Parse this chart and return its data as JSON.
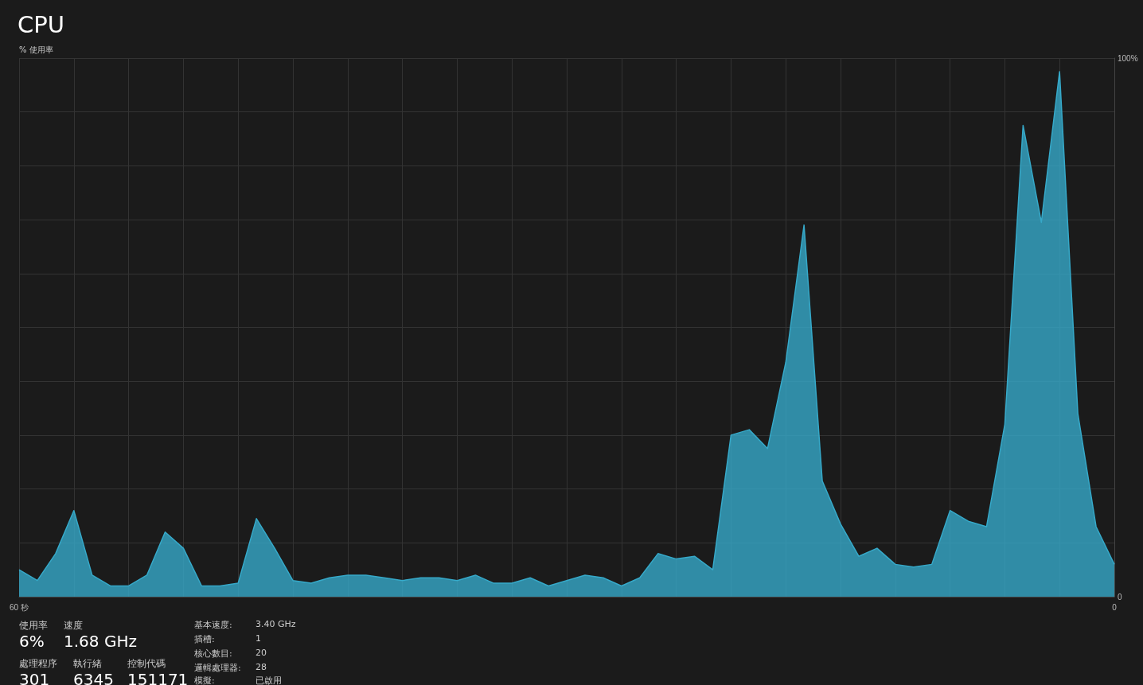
{
  "chart_data": {
    "type": "area",
    "title": "CPU",
    "ylabel": "% 使用率",
    "x": [
      60,
      59,
      58,
      57,
      56,
      55,
      54,
      53,
      52,
      51,
      50,
      49,
      48,
      47,
      46,
      45,
      44,
      43,
      42,
      41,
      40,
      39,
      38,
      37,
      36,
      35,
      34,
      33,
      32,
      31,
      30,
      29,
      28,
      27,
      26,
      25,
      24,
      23,
      22,
      21,
      20,
      19,
      18,
      17,
      16,
      15,
      14,
      13,
      12,
      11,
      10,
      9,
      8,
      7,
      6,
      5,
      4,
      3,
      2,
      1,
      0
    ],
    "series": [
      {
        "color": "#36a9c9",
        "values": [
          5,
          3,
          8,
          16,
          4,
          2,
          2,
          4,
          12,
          9,
          2,
          2,
          2.5,
          14.5,
          9,
          3,
          2.5,
          3.5,
          4,
          4,
          3.5,
          3,
          3.5,
          3.5,
          3,
          4,
          2.5,
          2.5,
          3.5,
          2,
          3,
          4,
          3.5,
          2,
          3.5,
          8,
          7,
          7.5,
          5,
          30,
          31,
          27.5,
          43.5,
          69,
          21.5,
          13.5,
          7.5,
          9,
          6,
          5.5,
          6,
          16,
          14,
          13,
          32,
          87.5,
          69.5,
          97.5,
          34,
          13,
          6
        ]
      }
    ],
    "xlim": [
      60,
      0
    ],
    "ylim": [
      0,
      100
    ],
    "xticks": [
      {
        "value": 60,
        "label": "60 秒"
      },
      {
        "value": 57,
        "label": null
      },
      {
        "value": 54,
        "label": null
      },
      {
        "value": 51,
        "label": null
      },
      {
        "value": 48,
        "label": null
      },
      {
        "value": 45,
        "label": null
      },
      {
        "value": 42,
        "label": null
      },
      {
        "value": 39,
        "label": null
      },
      {
        "value": 36,
        "label": null
      },
      {
        "value": 33,
        "label": null
      },
      {
        "value": 30,
        "label": null
      },
      {
        "value": 27,
        "label": null
      },
      {
        "value": 24,
        "label": null
      },
      {
        "value": 21,
        "label": null
      },
      {
        "value": 18,
        "label": null
      },
      {
        "value": 15,
        "label": null
      },
      {
        "value": 12,
        "label": null
      },
      {
        "value": 9,
        "label": null
      },
      {
        "value": 6,
        "label": null
      },
      {
        "value": 3,
        "label": null
      },
      0
    ],
    "yticks": [
      0,
      {
        "value": 10,
        "label": null
      },
      {
        "value": 20,
        "label": null
      },
      {
        "value": 30,
        "label": null
      },
      {
        "value": 40,
        "label": null
      },
      {
        "value": 50,
        "label": null
      },
      {
        "value": 60,
        "label": null
      },
      {
        "value": 70,
        "label": null
      },
      {
        "value": 80,
        "label": null
      },
      {
        "value": 90,
        "label": null
      },
      {
        "value": 100,
        "label": "100%"
      }
    ],
    "grid": true,
    "marker": "none",
    "line_style": "solid",
    "annotations": [
      "使用率",
      "6%",
      "速度",
      "1.68 GHz",
      "處理程序",
      "301",
      "執行緒",
      "6345",
      "控制代碼",
      "151171",
      "基本速度:",
      "3.40 GHz",
      "插槽:",
      "1",
      "核心數目:",
      "20",
      "邏輯處理器:",
      "28",
      "模擬:",
      "已啟用"
    ]
  }
}
